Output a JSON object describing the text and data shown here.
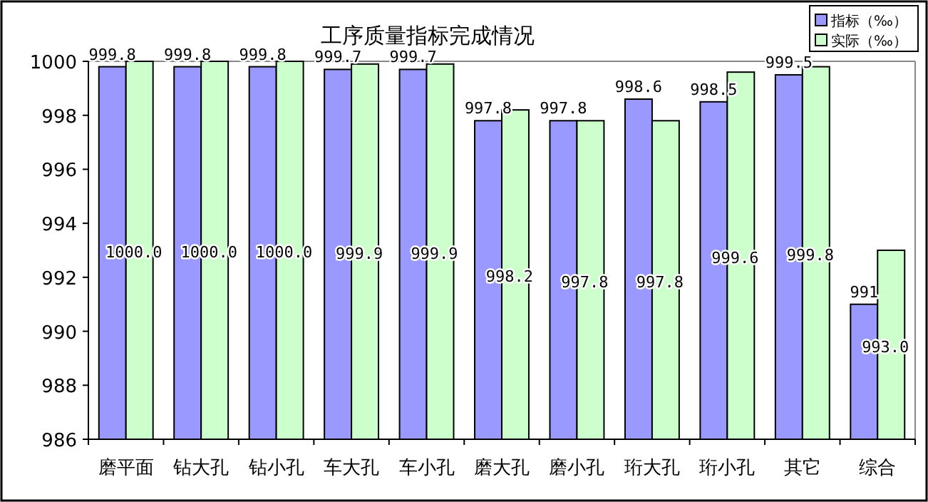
{
  "chart_data": {
    "type": "bar",
    "title": "工序质量指标完成情况",
    "categories": [
      "磨平面",
      "钻大孔",
      "钻小孔",
      "车大孔",
      "车小孔",
      "磨大孔",
      "磨小孔",
      "珩大孔",
      "珩小孔",
      "其它",
      "综合"
    ],
    "series": [
      {
        "name": "指标（‰）",
        "color": "#9999ff",
        "values": [
          999.8,
          999.8,
          999.8,
          999.7,
          999.7,
          997.8,
          997.8,
          998.6,
          998.5,
          999.5,
          991
        ],
        "value_labels": [
          "999.8",
          "999.8",
          "999.8",
          "999.7",
          "999.7",
          "997.8",
          "997.8",
          "998.6",
          "998.5",
          "999.5",
          "991"
        ]
      },
      {
        "name": "实际（‰）",
        "color": "#ccffcc",
        "values": [
          1000.0,
          1000.0,
          1000.0,
          999.9,
          999.9,
          998.2,
          997.8,
          997.8,
          999.6,
          999.8,
          993.0
        ],
        "value_labels": [
          "1000.0",
          "1000.0",
          "1000.0",
          "999.9",
          "999.9",
          "998.2",
          "997.8",
          "997.8",
          "999.6",
          "999.8",
          "993.0"
        ]
      }
    ],
    "ylim": [
      986,
      1000
    ],
    "yticks": [
      986,
      988,
      990,
      992,
      994,
      996,
      998,
      1000
    ],
    "legend": "top right"
  }
}
